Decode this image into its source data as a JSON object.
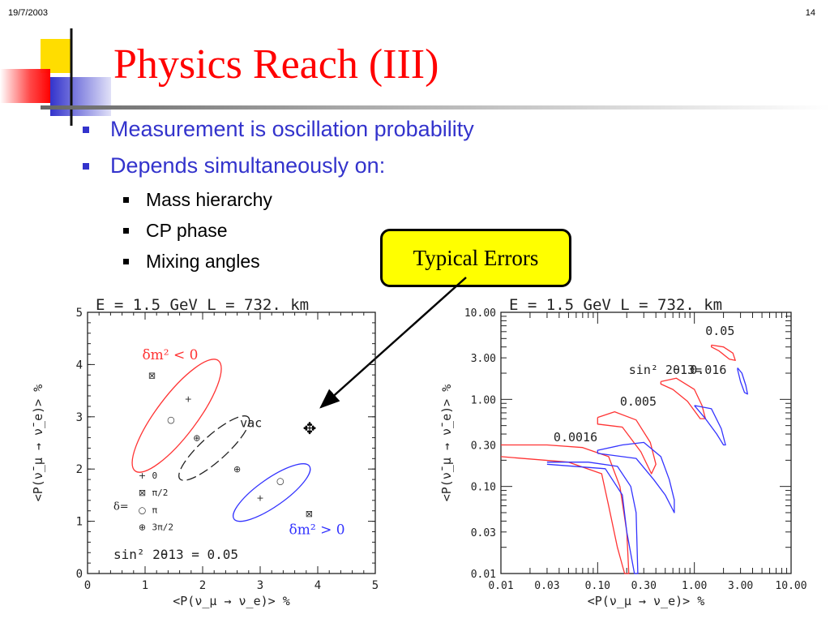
{
  "header": {
    "date": "19/7/2003",
    "page_number": "14"
  },
  "title": "Physics Reach (III)",
  "bullets": {
    "level1": [
      "Measurement is oscillation probability",
      "Depends simultaneously on:"
    ],
    "level2": [
      "Mass hierarchy",
      "CP phase",
      "Mixing angles"
    ]
  },
  "callout": {
    "text": "Typical Errors"
  },
  "colors": {
    "title": "#ff0000",
    "bullet": "#3333cc",
    "callout_fill": "#ffff00",
    "curve_red": "#ff3333",
    "curve_blue": "#3333ff"
  },
  "icons": {
    "move": "✥"
  },
  "chart_data": [
    {
      "type": "line",
      "title": "E = 1.5 GeV    L = 732. km",
      "xlabel": "<P(ν_μ → ν_e)> %",
      "ylabel": "<P(ν̄_μ → ν̄_e)> %",
      "xlim": [
        0,
        5
      ],
      "ylim": [
        0,
        5
      ],
      "xticks": [
        "0",
        "1",
        "2",
        "3",
        "4",
        "5"
      ],
      "yticks": [
        "0",
        "1",
        "2",
        "3",
        "4",
        "5"
      ],
      "annotations": {
        "negative_hierarchy": "δm² < 0",
        "positive_hierarchy": "δm² > 0",
        "vacuum": "vac",
        "mixing": "sin² 2θ13 = 0.05",
        "delta_label": "δ="
      },
      "delta_legend": [
        {
          "symbol": "+",
          "label": "0"
        },
        {
          "symbol": "⊠",
          "label": "π/2"
        },
        {
          "symbol": "○",
          "label": "π"
        },
        {
          "symbol": "⊕",
          "label": "3π/2"
        }
      ],
      "series": [
        {
          "color": "#ff3333",
          "style": "solid",
          "cx": 1.55,
          "cy": 3.02,
          "rx": 1.2,
          "ry": 0.35,
          "angle_deg": -53
        },
        {
          "color": "#3333ff",
          "style": "solid",
          "cx": 3.2,
          "cy": 1.55,
          "rx": 0.8,
          "ry": 0.24,
          "angle_deg": -35
        },
        {
          "color": "#222222",
          "style": "dashed",
          "cx": 2.2,
          "cy": 2.4,
          "rx": 0.8,
          "ry": 0.22,
          "angle_deg": -42
        }
      ],
      "markers": [
        {
          "color": "#ff3333",
          "symbol": "+",
          "x": 1.75,
          "y": 3.35
        },
        {
          "color": "#ff3333",
          "symbol": "⊠",
          "x": 1.12,
          "y": 3.8
        },
        {
          "color": "#ff3333",
          "symbol": "○",
          "x": 1.45,
          "y": 2.95
        },
        {
          "color": "#ff3333",
          "symbol": "⊕",
          "x": 1.9,
          "y": 2.6
        },
        {
          "color": "#3333ff",
          "symbol": "+",
          "x": 3.0,
          "y": 1.45
        },
        {
          "color": "#3333ff",
          "symbol": "⊠",
          "x": 3.85,
          "y": 1.15
        },
        {
          "color": "#3333ff",
          "symbol": "○",
          "x": 3.35,
          "y": 1.78
        },
        {
          "color": "#3333ff",
          "symbol": "⊕",
          "x": 2.6,
          "y": 2.0
        }
      ]
    },
    {
      "type": "line",
      "log_scale": {
        "x": true,
        "y": true
      },
      "title": "E = 1.5 GeV    L = 732. km",
      "xlabel": "<P(ν_μ → ν_e)> %",
      "ylabel": "<P(ν̄_μ → ν̄_e)> %",
      "xlim": [
        0.01,
        10
      ],
      "ylim": [
        0.01,
        10
      ],
      "xticks": [
        "0.01",
        "0.03",
        "0.10",
        "0.30",
        "1.00",
        "3.00",
        "10.00"
      ],
      "yticks": [
        "0.01",
        "0.03",
        "0.10",
        "0.30",
        "1.00",
        "3.00",
        "10.00"
      ],
      "annotations": {
        "mixing": "sin² 2θ13="
      },
      "contour_labels": [
        {
          "text": "0.05",
          "x": 1.3,
          "y": 5.5
        },
        {
          "text": "0.016",
          "x": 0.9,
          "y": 1.95
        },
        {
          "text": "0.005",
          "x": 0.17,
          "y": 0.85
        },
        {
          "text": "0.0016",
          "x": 0.035,
          "y": 0.33
        }
      ],
      "series": [
        {
          "label": "0.0016",
          "color": "#ff3333",
          "points": [
            [
              0.01,
              0.22
            ],
            [
              0.05,
              0.19
            ],
            [
              0.11,
              0.14
            ],
            [
              0.13,
              0.06
            ],
            [
              0.16,
              0.02
            ],
            [
              0.19,
              0.01
            ],
            [
              0.21,
              0.01
            ],
            [
              0.2,
              0.03
            ],
            [
              0.17,
              0.1
            ],
            [
              0.13,
              0.22
            ],
            [
              0.07,
              0.28
            ],
            [
              0.03,
              0.3
            ],
            [
              0.01,
              0.3
            ]
          ]
        },
        {
          "label": "0.0016",
          "color": "#3333ff",
          "points": [
            [
              0.03,
              0.18
            ],
            [
              0.12,
              0.16
            ],
            [
              0.18,
              0.08
            ],
            [
              0.2,
              0.03
            ],
            [
              0.24,
              0.01
            ],
            [
              0.26,
              0.01
            ],
            [
              0.25,
              0.05
            ],
            [
              0.22,
              0.1
            ],
            [
              0.16,
              0.17
            ],
            [
              0.08,
              0.19
            ],
            [
              0.03,
              0.19
            ]
          ]
        },
        {
          "label": "0.005",
          "color": "#ff3333",
          "points": [
            [
              0.1,
              0.62
            ],
            [
              0.15,
              0.72
            ],
            [
              0.25,
              0.58
            ],
            [
              0.35,
              0.32
            ],
            [
              0.4,
              0.18
            ],
            [
              0.36,
              0.14
            ],
            [
              0.28,
              0.25
            ],
            [
              0.18,
              0.48
            ],
            [
              0.1,
              0.52
            ],
            [
              0.1,
              0.62
            ]
          ]
        },
        {
          "label": "0.005",
          "color": "#3333ff",
          "points": [
            [
              0.1,
              0.24
            ],
            [
              0.25,
              0.21
            ],
            [
              0.38,
              0.12
            ],
            [
              0.5,
              0.08
            ],
            [
              0.62,
              0.05
            ],
            [
              0.62,
              0.07
            ],
            [
              0.55,
              0.12
            ],
            [
              0.45,
              0.22
            ],
            [
              0.3,
              0.32
            ],
            [
              0.18,
              0.3
            ],
            [
              0.1,
              0.26
            ],
            [
              0.1,
              0.24
            ]
          ]
        },
        {
          "label": "0.016",
          "color": "#ff3333",
          "points": [
            [
              0.45,
              1.6
            ],
            [
              0.65,
              1.75
            ],
            [
              1.0,
              1.3
            ],
            [
              1.2,
              0.85
            ],
            [
              1.3,
              0.6
            ],
            [
              1.15,
              0.6
            ],
            [
              0.85,
              0.95
            ],
            [
              0.6,
              1.3
            ],
            [
              0.45,
              1.5
            ],
            [
              0.45,
              1.6
            ]
          ]
        },
        {
          "label": "0.016",
          "color": "#3333ff",
          "points": [
            [
              1.0,
              0.85
            ],
            [
              1.5,
              0.78
            ],
            [
              1.9,
              0.46
            ],
            [
              2.1,
              0.3
            ],
            [
              2.0,
              0.3
            ],
            [
              1.7,
              0.4
            ],
            [
              1.3,
              0.6
            ],
            [
              1.0,
              0.85
            ]
          ]
        },
        {
          "label": "0.05",
          "color": "#ff3333",
          "points": [
            [
              1.5,
              4.2
            ],
            [
              2.0,
              4.0
            ],
            [
              2.5,
              3.4
            ],
            [
              2.65,
              2.8
            ],
            [
              2.3,
              2.9
            ],
            [
              1.8,
              3.6
            ],
            [
              1.5,
              4.0
            ],
            [
              1.5,
              4.2
            ]
          ]
        },
        {
          "label": "0.05",
          "color": "#3333ff",
          "points": [
            [
              2.8,
              2.3
            ],
            [
              3.1,
              2.0
            ],
            [
              3.4,
              1.45
            ],
            [
              3.55,
              1.15
            ],
            [
              3.3,
              1.2
            ],
            [
              3.0,
              1.6
            ],
            [
              2.8,
              2.2
            ],
            [
              2.8,
              2.3
            ]
          ]
        }
      ]
    }
  ]
}
